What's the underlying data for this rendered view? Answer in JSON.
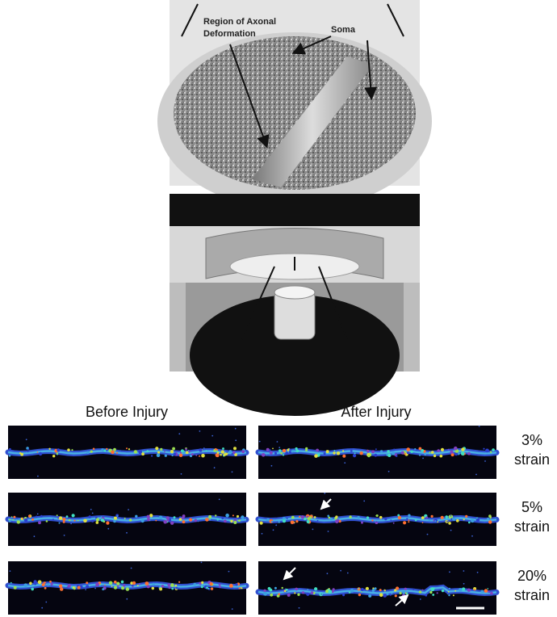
{
  "diagram": {
    "region_label": [
      "Region of Axonal",
      "Deformation"
    ],
    "soma_label": "Soma"
  },
  "panels": {
    "before_title": "Before Injury",
    "after_title": "After Injury",
    "rows": [
      [
        "3%",
        "strain"
      ],
      [
        "5%",
        "strain"
      ],
      [
        "20%",
        "strain"
      ]
    ]
  }
}
